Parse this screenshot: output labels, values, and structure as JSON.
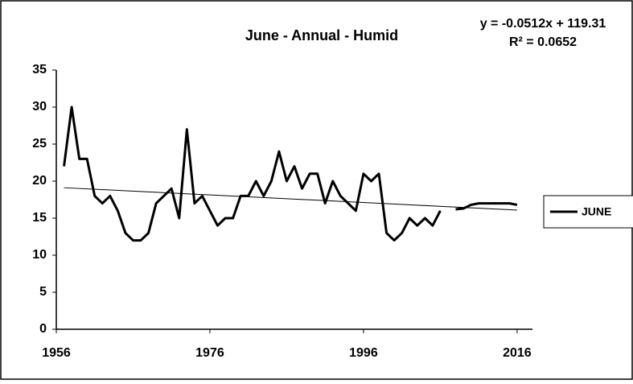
{
  "chart_data": {
    "type": "line",
    "title": "June - Annual - Humid",
    "annotations": [
      "y = -0.0512x + 119.31",
      "R² = 0.0652"
    ],
    "x": [
      1957,
      1958,
      1959,
      1960,
      1961,
      1962,
      1963,
      1964,
      1965,
      1966,
      1967,
      1968,
      1969,
      1970,
      1971,
      1972,
      1973,
      1974,
      1975,
      1976,
      1977,
      1978,
      1979,
      1980,
      1981,
      1982,
      1983,
      1984,
      1985,
      1986,
      1987,
      1988,
      1989,
      1990,
      1991,
      1992,
      1993,
      1994,
      1995,
      1996,
      1997,
      1998,
      1999,
      2000,
      2001,
      2002,
      2003,
      2004,
      2005,
      2006,
      2007,
      2008,
      2009,
      2010,
      2011,
      2012,
      2013,
      2014,
      2015,
      2016
    ],
    "series": [
      {
        "name": "JUNE",
        "color": "#000000",
        "values": [
          22,
          30,
          23,
          23,
          18,
          17,
          18,
          16,
          13,
          12,
          12,
          13,
          17,
          18,
          19,
          15,
          27,
          17,
          18,
          16,
          14,
          15,
          15,
          18,
          18,
          20,
          18,
          20,
          24,
          20,
          22,
          19,
          21,
          21,
          17,
          20,
          18,
          17,
          16,
          21,
          20,
          21,
          13,
          12,
          13,
          15,
          14,
          15,
          14,
          16,
          null,
          16.2,
          16.3,
          16.8,
          17,
          17,
          17,
          17,
          17,
          16.8
        ]
      }
    ],
    "trendline": {
      "x": [
        1957,
        2016
      ],
      "values": [
        19.11,
        16.09
      ],
      "color": "#000000"
    },
    "xlim": [
      1956,
      2018
    ],
    "xticks": [
      1956,
      1976,
      1996,
      2016
    ],
    "ylim": [
      0,
      35
    ],
    "yticks": [
      0,
      5,
      10,
      15,
      20,
      25,
      30,
      35
    ],
    "legend": "right"
  }
}
